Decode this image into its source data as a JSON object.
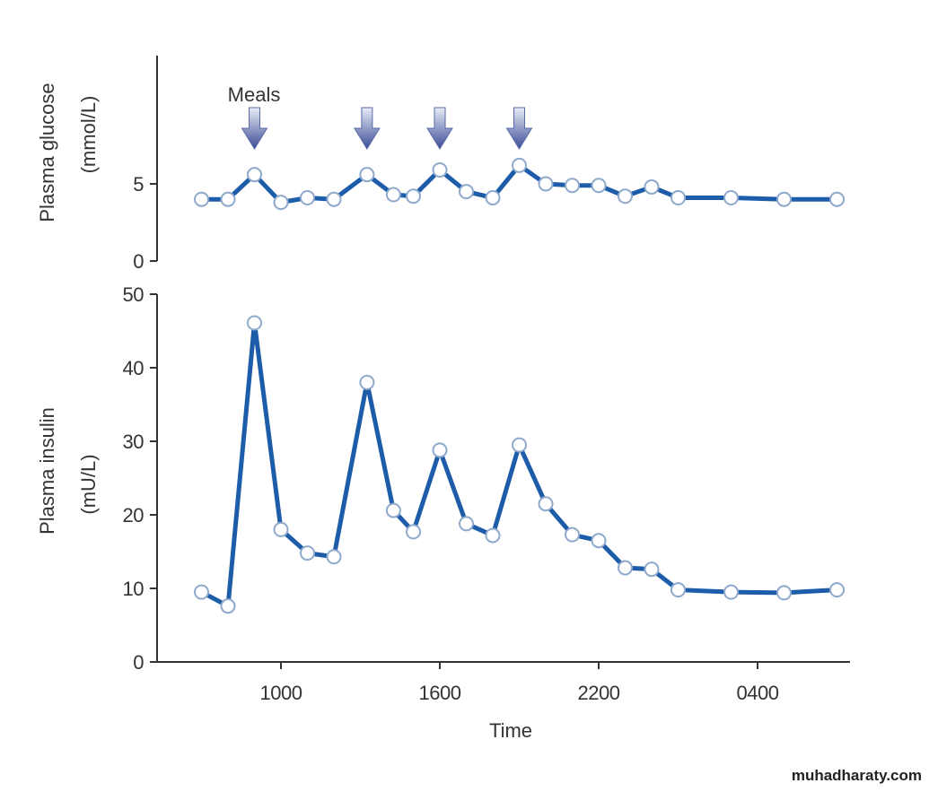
{
  "chart_data": [
    {
      "type": "line",
      "ylabel_line1": "Plasma glucose",
      "ylabel_line2": "(mmol/L)",
      "ylim": [
        0,
        8
      ],
      "yticks": [
        0,
        5
      ],
      "annotation": "Meals",
      "meal_times_hours": [
        9,
        13.25,
        16,
        19
      ],
      "x_hours": [
        7,
        8,
        9,
        10,
        11,
        12,
        13.25,
        14.25,
        15,
        16,
        17,
        18,
        19,
        20,
        21,
        22,
        23,
        24,
        25,
        27,
        29,
        31
      ],
      "values": [
        4.0,
        4.0,
        5.6,
        3.8,
        4.1,
        4.0,
        5.6,
        4.3,
        4.2,
        5.9,
        4.5,
        4.1,
        6.2,
        5.0,
        4.9,
        4.9,
        4.2,
        4.8,
        4.1,
        4.1,
        4.0,
        4.0
      ]
    },
    {
      "type": "line",
      "ylabel_line1": "Plasma insulin",
      "ylabel_line2": "(mU/L)",
      "ylim": [
        0,
        50
      ],
      "yticks": [
        0,
        10,
        20,
        30,
        40,
        50
      ],
      "xlabel": "Time",
      "xticks": [
        {
          "hour": 10,
          "label": "1000"
        },
        {
          "hour": 16,
          "label": "1600"
        },
        {
          "hour": 22,
          "label": "2200"
        },
        {
          "hour": 28,
          "label": "0400"
        }
      ],
      "x_hours": [
        7,
        8,
        9,
        10,
        11,
        12,
        13.25,
        14.25,
        15,
        16,
        17,
        18,
        19,
        20,
        21,
        22,
        23,
        24,
        25,
        27,
        29,
        31
      ],
      "values": [
        9.5,
        7.6,
        46.1,
        18.0,
        14.8,
        14.3,
        38.0,
        20.6,
        17.7,
        28.8,
        18.8,
        17.2,
        29.5,
        21.5,
        17.3,
        16.5,
        12.8,
        12.6,
        9.8,
        9.5,
        9.4,
        9.8
      ]
    }
  ],
  "colors": {
    "line": "#1d5ca8",
    "marker_stroke": "#8fa9cc",
    "arrow": "#4a5a9e",
    "axis": "#333333"
  },
  "watermark": "muhadharaty.com"
}
